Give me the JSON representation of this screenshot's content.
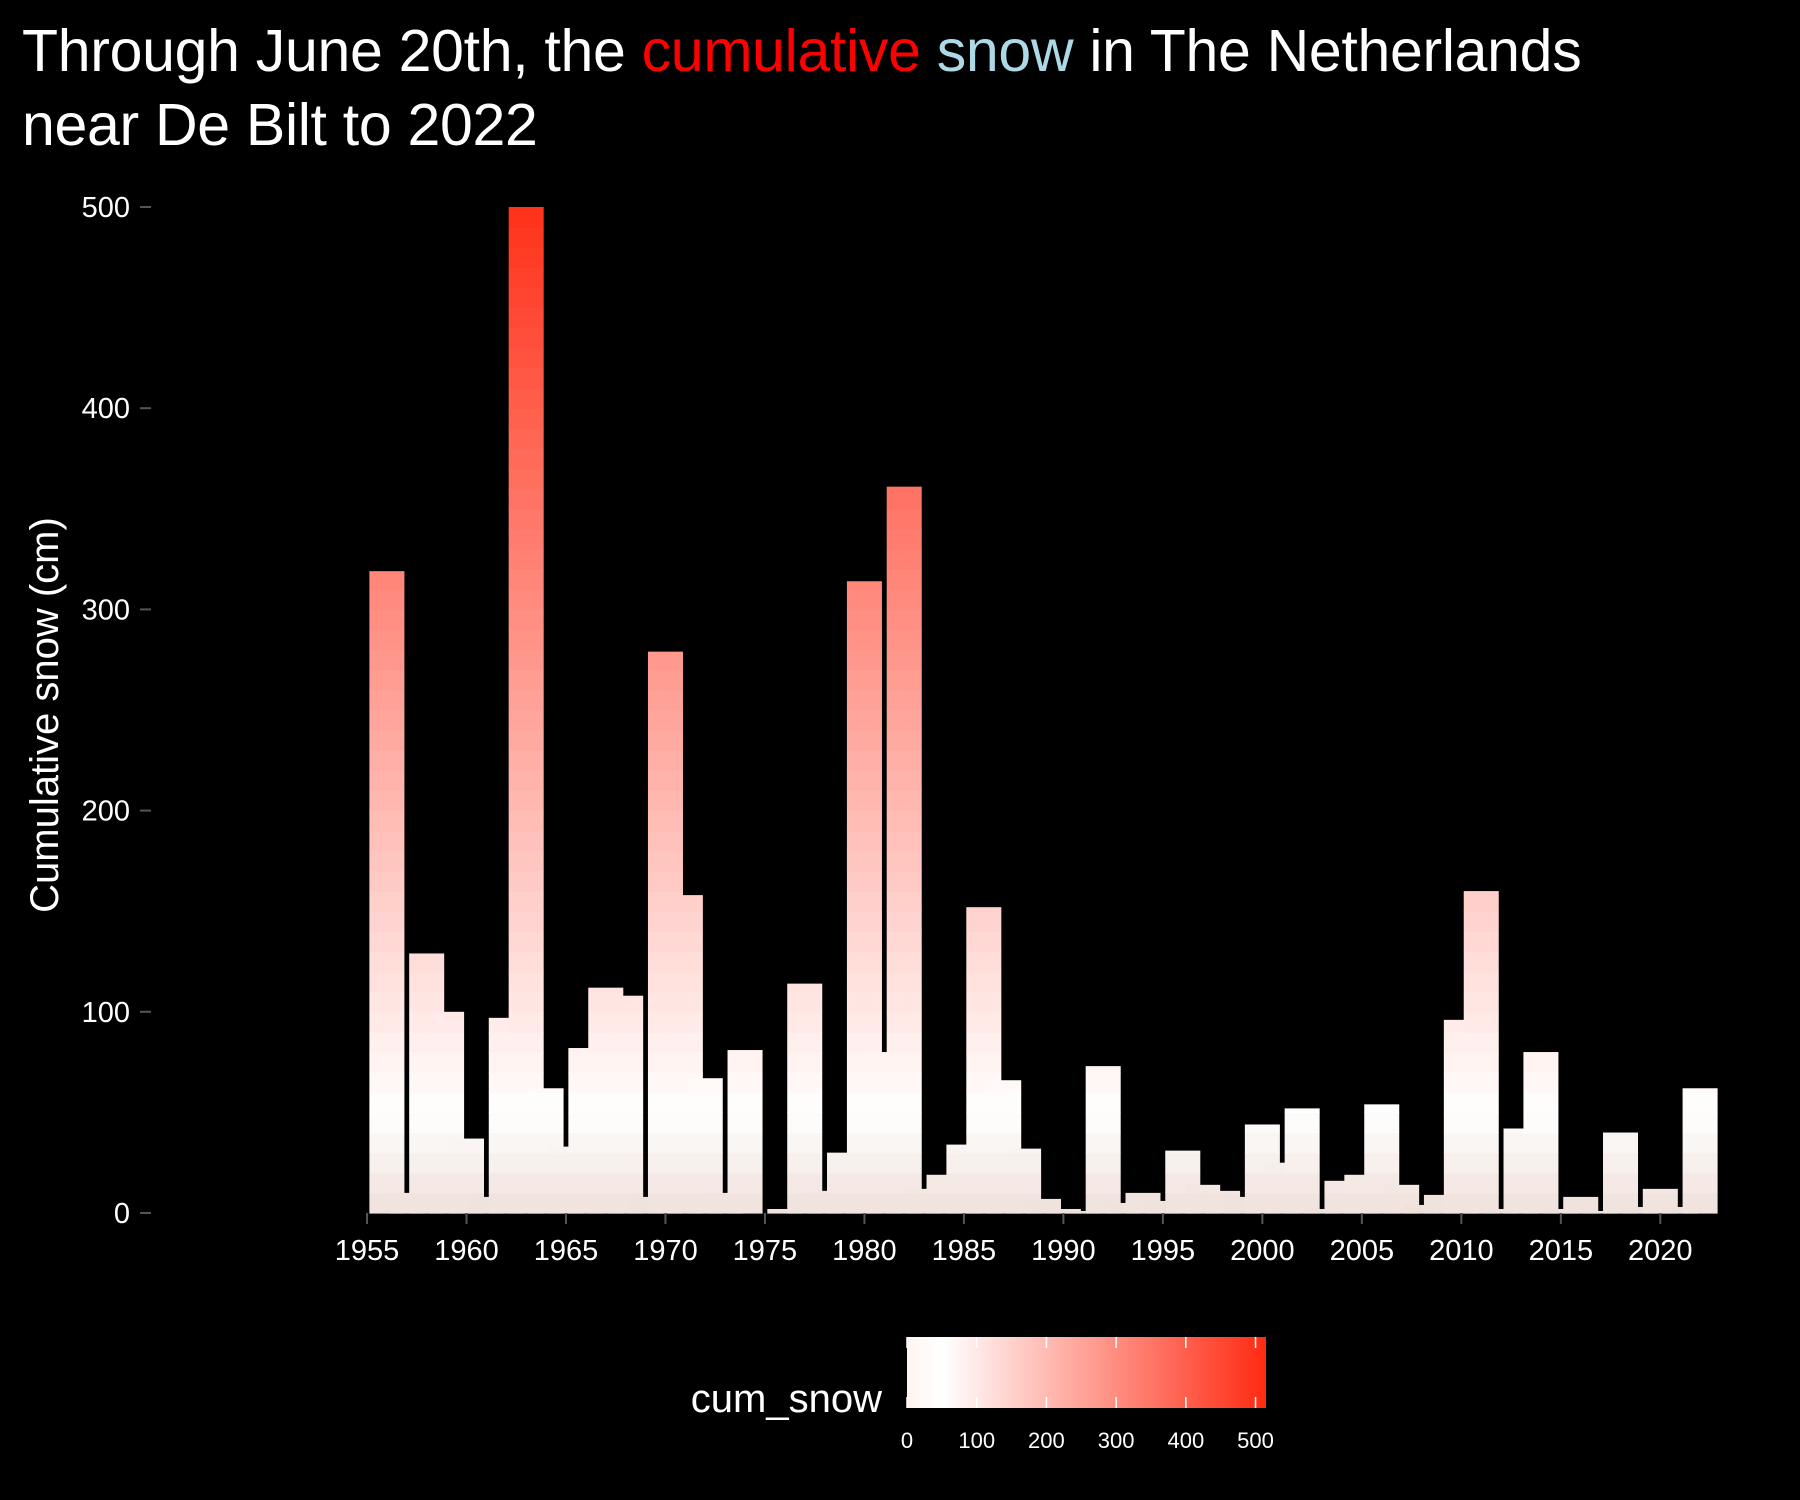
{
  "title": {
    "part1": "Through",
    "part2": "June 20th, the",
    "highlight1": "cumulative",
    "highlight2": "snow",
    "part3": "in The Netherlands",
    "line2": "near De Bilt to 2022",
    "highlight1_color": "#ff0000",
    "highlight2_color": "#add8e6"
  },
  "colors": {
    "background": "#000000",
    "low": "#ffffff",
    "high": "#ff2a12",
    "dark_tint": "#efe0da"
  },
  "chart_data": {
    "type": "bar",
    "title": "",
    "xlabel": "",
    "ylabel": "Cumulative snow (cm)",
    "ylim": [
      0,
      500
    ],
    "xlim": [
      1955,
      2023
    ],
    "y_ticks": [
      0,
      100,
      200,
      300,
      400,
      500
    ],
    "x_ticks": [
      1955,
      1960,
      1965,
      1970,
      1975,
      1980,
      1985,
      1990,
      1995,
      2000,
      2005,
      2010,
      2015,
      2020
    ],
    "fill_variable": "cum_snow",
    "legend": {
      "title": "cum_snow",
      "position": "bottom",
      "ticks": [
        0,
        100,
        200,
        300,
        400,
        500
      ],
      "range": [
        0,
        515
      ]
    },
    "grid": false,
    "years": [
      1955,
      1956,
      1957,
      1958,
      1959,
      1960,
      1961,
      1962,
      1963,
      1964,
      1965,
      1966,
      1967,
      1968,
      1969,
      1970,
      1971,
      1972,
      1973,
      1974,
      1975,
      1976,
      1977,
      1978,
      1979,
      1980,
      1981,
      1982,
      1983,
      1984,
      1985,
      1986,
      1987,
      1988,
      1989,
      1990,
      1991,
      1992,
      1993,
      1994,
      1995,
      1996,
      1997,
      1998,
      1999,
      2000,
      2001,
      2002,
      2003,
      2004,
      2005,
      2006,
      2007,
      2008,
      2009,
      2010,
      2011,
      2012,
      2013,
      2014,
      2015,
      2016,
      2017,
      2018,
      2019,
      2020,
      2021,
      2022
    ],
    "values": [
      0,
      319,
      10,
      129,
      100,
      37,
      8,
      97,
      500,
      62,
      33,
      82,
      112,
      108,
      8,
      279,
      158,
      67,
      10,
      81,
      0,
      2,
      114,
      11,
      30,
      314,
      80,
      361,
      12,
      19,
      34,
      152,
      66,
      32,
      7,
      2,
      1,
      73,
      5,
      10,
      6,
      31,
      14,
      11,
      8,
      44,
      25,
      52,
      2,
      16,
      19,
      54,
      14,
      4,
      9,
      96,
      160,
      2,
      42,
      80,
      2,
      8,
      1,
      40,
      3,
      12,
      3,
      62
    ]
  }
}
